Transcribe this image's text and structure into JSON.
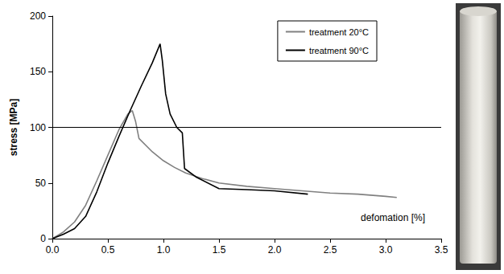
{
  "chart_data": {
    "type": "line",
    "x_label": "defomation [%]",
    "y_label": "stress [MPa]",
    "series": [
      {
        "name": "treatment 20°C",
        "color": "#808080",
        "x": [
          0.0,
          0.1,
          0.2,
          0.3,
          0.4,
          0.5,
          0.6,
          0.68,
          0.72,
          0.75,
          0.78,
          0.9,
          1.0,
          1.1,
          1.2,
          1.35,
          1.5,
          1.75,
          2.0,
          2.25,
          2.5,
          2.75,
          3.0,
          3.1
        ],
        "values": [
          0,
          6,
          15,
          30,
          52,
          75,
          98,
          112,
          115,
          105,
          90,
          78,
          70,
          64,
          59,
          54,
          50,
          47,
          45,
          43,
          41,
          40,
          38,
          37
        ]
      },
      {
        "name": "treatment 90°C",
        "color": "#000000",
        "x": [
          0.0,
          0.1,
          0.2,
          0.3,
          0.4,
          0.5,
          0.6,
          0.7,
          0.8,
          0.9,
          0.97,
          0.99,
          1.02,
          1.06,
          1.12,
          1.17,
          1.19,
          1.3,
          1.5,
          1.75,
          2.0,
          2.3
        ],
        "values": [
          0,
          4,
          9,
          20,
          42,
          68,
          92,
          115,
          137,
          158,
          175,
          160,
          130,
          112,
          100,
          95,
          63,
          55,
          45,
          44,
          43,
          40
        ]
      }
    ],
    "xlim": [
      0,
      3.5
    ],
    "xticks": [
      {
        "value": 0,
        "label": "0.0"
      },
      0.5,
      {
        "value": 1,
        "label": "1.0"
      },
      1.5,
      {
        "value": 2,
        "label": "2.0"
      },
      2.5,
      {
        "value": 3,
        "label": "3.0"
      },
      3.5
    ],
    "ylim": [
      0,
      200
    ],
    "yticks": [
      0,
      50,
      100,
      150,
      200
    ],
    "reference_lines": [
      100
    ],
    "grid": false,
    "legend": "upper right"
  }
}
